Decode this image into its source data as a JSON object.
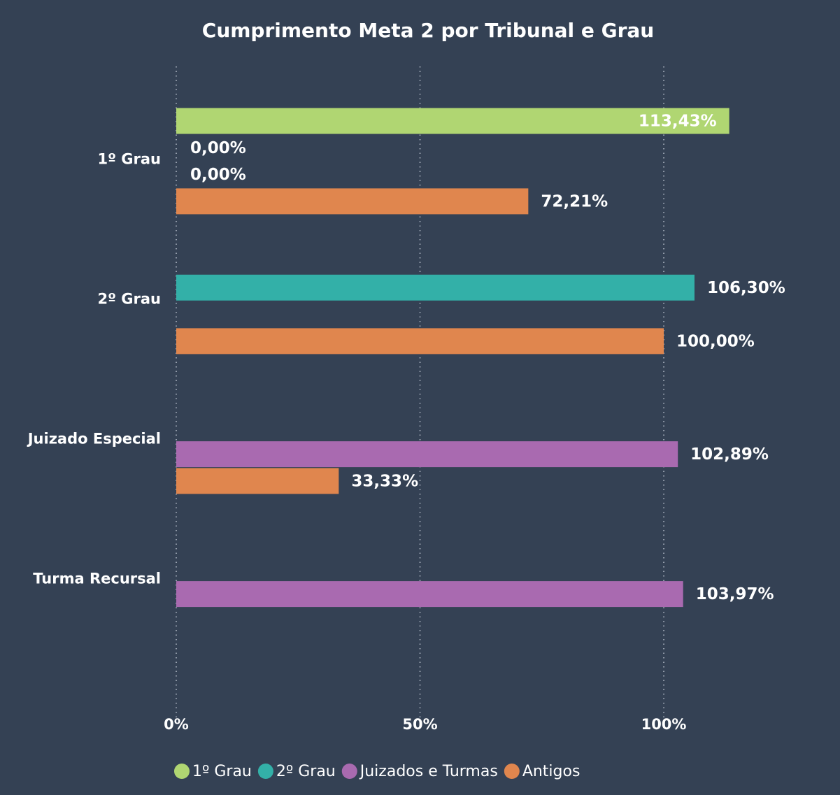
{
  "chart_data": {
    "type": "hbar",
    "title": "Cumprimento Meta 2 por Tribunal e Grau",
    "categories": [
      "1º Grau",
      "2º Grau",
      "Juizado Especial",
      "Turma Recursal"
    ],
    "series": [
      {
        "name": "1º Grau",
        "color": "#b0d672",
        "values": [
          113.43,
          null,
          null,
          null
        ],
        "value_labels": [
          "113,43%",
          null,
          null,
          null
        ]
      },
      {
        "name": "2º Grau",
        "color": "#33b0a8",
        "values": [
          0,
          106.3,
          null,
          null
        ],
        "value_labels": [
          "0,00%",
          "106,30%",
          null,
          null
        ]
      },
      {
        "name": "Juizados e Turmas",
        "color": "#a96ab0",
        "values": [
          0,
          null,
          102.89,
          103.97
        ],
        "value_labels": [
          "0,00%",
          null,
          "102,89%",
          "103,97%"
        ]
      },
      {
        "name": "Antigos",
        "color": "#e0864e",
        "values": [
          72.21,
          100.0,
          33.33,
          null
        ],
        "value_labels": [
          "72,21%",
          "100,00%",
          "33,33%",
          null
        ]
      }
    ],
    "xlim": [
      0,
      135
    ],
    "xticks": [
      {
        "value": 0,
        "label": "0%"
      },
      {
        "value": 50,
        "label": "50%"
      },
      {
        "value": 100,
        "label": "100%"
      }
    ],
    "grid": true,
    "legend": "bottom"
  }
}
